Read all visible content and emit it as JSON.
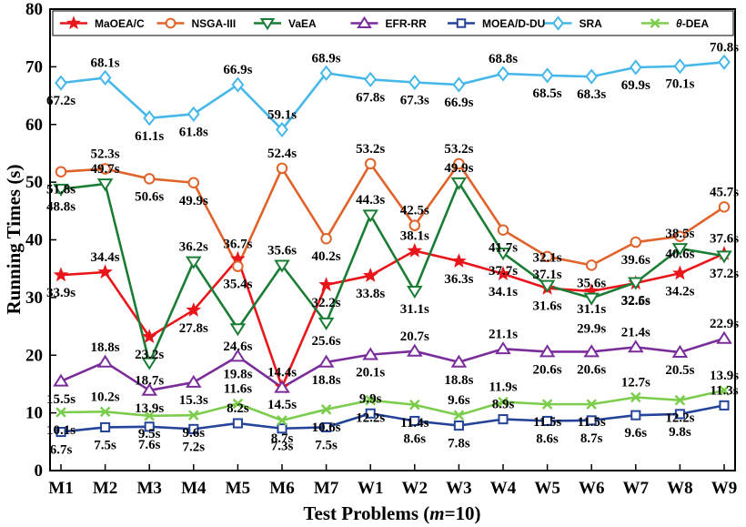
{
  "chart_data": {
    "type": "line",
    "xlabel": "Test Problems (m=10)",
    "ylabel": "Running Times (s)",
    "ylim": [
      0,
      80
    ],
    "yticks": [
      0,
      10,
      20,
      30,
      40,
      50,
      60,
      70,
      80
    ],
    "categories": [
      "M1",
      "M2",
      "M3",
      "M4",
      "M5",
      "M6",
      "M7",
      "W1",
      "W2",
      "W3",
      "W4",
      "W5",
      "W6",
      "W7",
      "W8",
      "W9"
    ],
    "legend_position": "top",
    "series": [
      {
        "name": "MaOEA/C",
        "color": "#e8161b",
        "marker": "star",
        "values": [
          33.9,
          34.4,
          23.2,
          27.8,
          36.7,
          14.5,
          32.2,
          33.8,
          38.1,
          36.3,
          34.1,
          31.6,
          31.1,
          32.5,
          34.2,
          37.6
        ]
      },
      {
        "name": "NSGA-III",
        "color": "#e0632a",
        "marker": "circle",
        "values": [
          51.8,
          52.3,
          50.6,
          49.9,
          35.4,
          52.4,
          40.2,
          53.2,
          42.5,
          53.2,
          41.7,
          37.1,
          35.6,
          39.6,
          40.6,
          45.7
        ]
      },
      {
        "name": "VaEA",
        "color": "#1b7d35",
        "marker": "triangle-down",
        "values": [
          48.8,
          49.7,
          18.7,
          36.2,
          24.6,
          35.6,
          25.6,
          44.3,
          31.1,
          49.9,
          37.7,
          32.1,
          29.9,
          32.6,
          38.5,
          37.2
        ]
      },
      {
        "name": "EFR-RR",
        "color": "#7a2d9a",
        "marker": "triangle-up",
        "values": [
          15.5,
          18.8,
          13.9,
          15.3,
          19.8,
          14.4,
          18.8,
          20.1,
          20.7,
          18.8,
          21.1,
          20.6,
          20.6,
          21.4,
          20.5,
          22.9
        ]
      },
      {
        "name": "MOEA/D-DU",
        "color": "#24449a",
        "marker": "square",
        "values": [
          6.7,
          7.5,
          7.6,
          7.2,
          8.2,
          7.3,
          7.5,
          9.9,
          8.6,
          7.8,
          8.9,
          8.6,
          8.7,
          9.6,
          9.8,
          11.3
        ]
      },
      {
        "name": "SRA",
        "color": "#45b7e9",
        "marker": "diamond",
        "values": [
          67.2,
          68.1,
          61.1,
          61.8,
          66.9,
          59.1,
          68.9,
          67.8,
          67.3,
          66.9,
          68.8,
          68.5,
          68.3,
          69.9,
          70.1,
          70.8
        ]
      },
      {
        "name": "θ-DEA",
        "color": "#7ccd4e",
        "marker": "x",
        "values": [
          10.1,
          10.2,
          9.5,
          9.6,
          11.6,
          8.7,
          10.6,
          12.2,
          11.4,
          9.6,
          11.9,
          11.5,
          11.5,
          12.7,
          12.2,
          13.9
        ]
      }
    ]
  }
}
